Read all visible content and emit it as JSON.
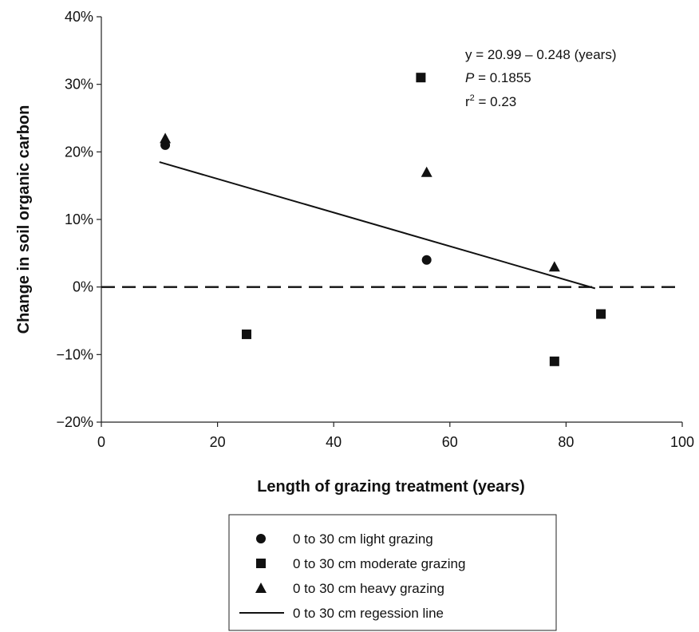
{
  "chart_data": {
    "type": "scatter",
    "title": "",
    "xlabel": "Length of grazing treatment (years)",
    "ylabel": "Change in soil organic carbon",
    "xlim": [
      0,
      100
    ],
    "ylim": [
      -20,
      40
    ],
    "x_ticks": [
      0,
      20,
      40,
      60,
      80,
      100
    ],
    "x_tick_labels": [
      "0",
      "20",
      "40",
      "60",
      "80",
      "100"
    ],
    "y_ticks": [
      -20,
      -10,
      0,
      10,
      20,
      30,
      40
    ],
    "y_tick_labels": [
      "−20%",
      "−10%",
      "0%",
      "10%",
      "20%",
      "30%",
      "40%"
    ],
    "grid": false,
    "legend_position": "bottom",
    "series": [
      {
        "name": "0 to 30 cm light grazing",
        "marker": "circle",
        "x": [
          11,
          56
        ],
        "y": [
          21,
          4
        ]
      },
      {
        "name": "0 to 30 cm moderate grazing",
        "marker": "square",
        "x": [
          25,
          55,
          78,
          86
        ],
        "y": [
          -7,
          31,
          -11,
          -4
        ]
      },
      {
        "name": "0 to 30 cm heavy grazing",
        "marker": "triangle",
        "x": [
          11,
          56,
          78
        ],
        "y": [
          22,
          17,
          3
        ]
      }
    ],
    "regression": {
      "name": "0 to 30 cm regession line",
      "x": [
        10,
        85
      ],
      "y": [
        18.5,
        -0.2
      ]
    },
    "reference_line": {
      "y": 0,
      "style": "dashed"
    },
    "annotations": {
      "equation": "y = 20.99 – 0.248 (years)",
      "p_label": "P",
      "p_value": " = 0.1855",
      "r2_label": "r",
      "r2_exp": "2",
      "r2_value": " = 0.23"
    },
    "colors": {
      "marker": "#111111",
      "line": "#111111",
      "background": "#ffffff"
    }
  }
}
